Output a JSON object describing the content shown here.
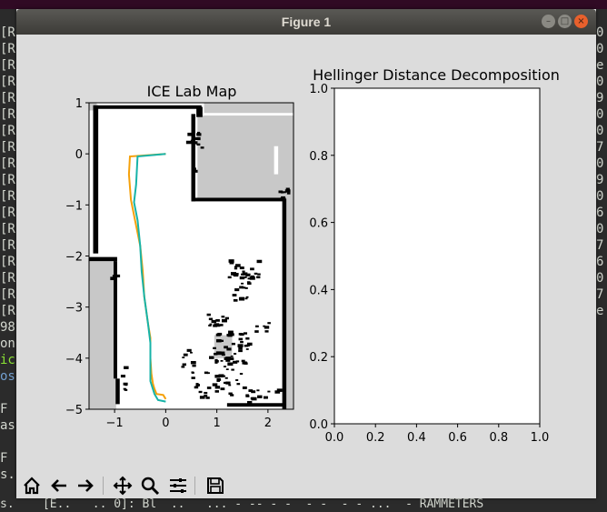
{
  "window": {
    "title": "Figure 1"
  },
  "terminal": {
    "left_lines": [
      "[R",
      "[R",
      "[R",
      "[R",
      "[R",
      "[R",
      "[R",
      "[R",
      "[R",
      "[R",
      "[R",
      "[R",
      "[R",
      "[R",
      "[R",
      "[R",
      "[R",
      "[R",
      "98",
      "on",
      "ic",
      "os",
      "",
      "F",
      "as",
      "",
      "F",
      "s."
    ],
    "right_lines": [
      "0",
      "0",
      "e",
      "0",
      "9",
      "0",
      "0",
      "7",
      "0",
      "9",
      "0",
      "6",
      "0",
      "7",
      "6",
      "0",
      "7",
      "e",
      "",
      "",
      "",
      "",
      "",
      ""
    ],
    "bottom_line": "s.    [E..   .. 0]: Bl  ..   ... - -- - -  - -  - - ...  - RAMMETERS"
  },
  "chart_data": [
    {
      "type": "map",
      "title": "ICE Lab Map",
      "xticks": [
        "−1",
        "0",
        "1",
        "2"
      ],
      "yticks": [
        "1",
        "0",
        "−1",
        "−2",
        "−3",
        "−4",
        "−5"
      ],
      "xlim": [
        -1.5,
        2.5
      ],
      "ylim": [
        -5,
        1
      ],
      "series": [
        {
          "color": "#f5a10b",
          "x": [
            0.0,
            -0.7,
            -0.72,
            -0.68,
            -0.6,
            -0.5,
            -0.45,
            -0.42,
            -0.35,
            -0.3,
            -0.3,
            -0.28,
            -0.25,
            -0.22,
            -0.18,
            -0.05,
            0.0
          ],
          "y": [
            0.0,
            -0.05,
            -0.4,
            -0.9,
            -1.3,
            -1.8,
            -2.3,
            -2.8,
            -3.3,
            -3.6,
            -4.0,
            -4.3,
            -4.5,
            -4.6,
            -4.7,
            -4.72,
            -4.8
          ]
        },
        {
          "color": "#17b3a8",
          "x": [
            0.0,
            -0.55,
            -0.58,
            -0.62,
            -0.55,
            -0.5,
            -0.47,
            -0.42,
            -0.35,
            -0.3,
            -0.3,
            -0.3,
            -0.22,
            -0.15,
            0.0
          ],
          "y": [
            0.0,
            -0.05,
            -0.6,
            -0.95,
            -1.3,
            -1.8,
            -2.3,
            -2.8,
            -3.3,
            -3.7,
            -4.1,
            -4.45,
            -4.7,
            -4.82,
            -4.85
          ]
        }
      ]
    },
    {
      "type": "line",
      "title": "Hellinger Distance Decomposition",
      "xticks": [
        "0.0",
        "0.2",
        "0.4",
        "0.6",
        "0.8",
        "1.0"
      ],
      "yticks": [
        "0.0",
        "0.2",
        "0.4",
        "0.6",
        "0.8",
        "1.0"
      ],
      "xlim": [
        0,
        1
      ],
      "ylim": [
        0,
        1
      ],
      "series": []
    }
  ],
  "toolbar": {
    "buttons": [
      {
        "icon": "home-icon"
      },
      {
        "icon": "back-arrow-icon"
      },
      {
        "icon": "forward-arrow-icon"
      },
      {
        "icon": "pan-icon"
      },
      {
        "icon": "zoom-icon"
      },
      {
        "icon": "configure-subplots-icon"
      },
      {
        "icon": "save-icon"
      }
    ]
  }
}
